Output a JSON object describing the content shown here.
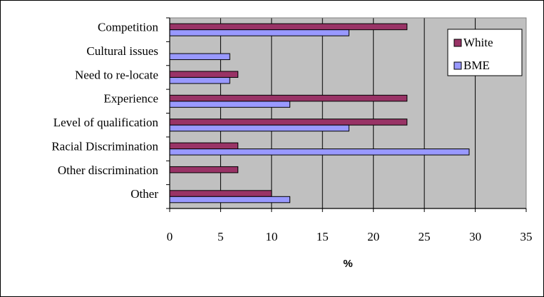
{
  "chart_data": {
    "type": "bar",
    "orientation": "horizontal",
    "title": "",
    "xlabel": "%",
    "ylabel": "",
    "xlim": [
      0,
      35
    ],
    "x_ticks": [
      0,
      5,
      10,
      15,
      20,
      25,
      30,
      35
    ],
    "grid": true,
    "plot_background": "#c0c0c0",
    "legend_position": "top-right",
    "categories": [
      "Competition",
      "Cultural issues",
      "Need to re-locate",
      "Experience",
      "Level of qualification",
      "Racial Discrimination",
      "Other discrimination",
      "Other"
    ],
    "series": [
      {
        "name": "White",
        "color": "#993366",
        "values": [
          23.3,
          0,
          6.7,
          23.3,
          23.3,
          6.7,
          6.7,
          10.0
        ]
      },
      {
        "name": "BME",
        "color": "#9999ff",
        "values": [
          17.6,
          5.9,
          5.9,
          11.8,
          17.6,
          29.4,
          0,
          11.8
        ]
      }
    ]
  }
}
